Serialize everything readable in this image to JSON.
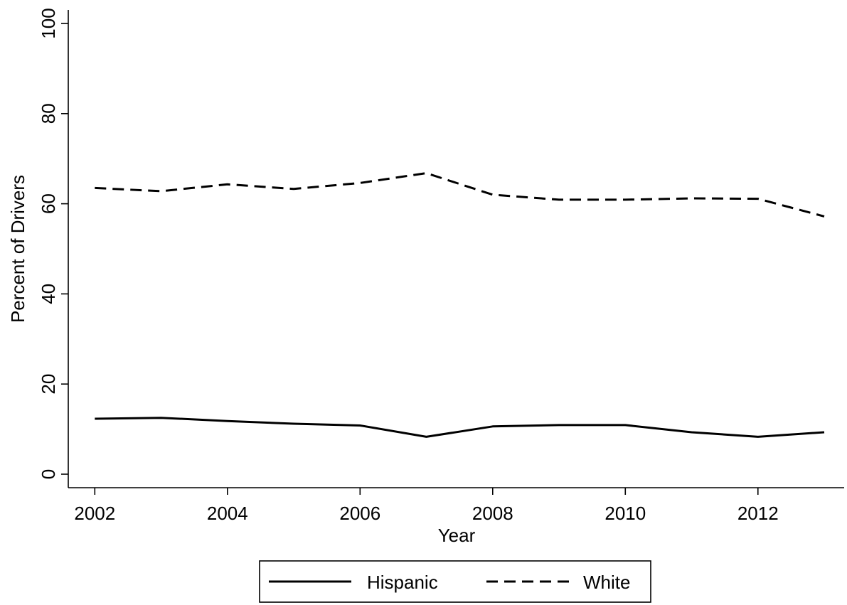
{
  "chart_data": {
    "type": "line",
    "title": "",
    "xlabel": "Year",
    "ylabel": "Percent of Drivers",
    "x": [
      2002,
      2003,
      2004,
      2005,
      2006,
      2007,
      2008,
      2009,
      2010,
      2011,
      2012,
      2013
    ],
    "xlim": [
      2001.6,
      2013.3
    ],
    "ylim": [
      -3,
      103
    ],
    "xticks": [
      2002,
      2004,
      2006,
      2008,
      2010,
      2012
    ],
    "yticks": [
      0,
      20,
      40,
      60,
      80,
      100
    ],
    "grid": false,
    "legend_position": "bottom-center",
    "series": [
      {
        "name": "Hispanic",
        "style": "solid",
        "color": "#000000",
        "values": [
          12.3,
          12.5,
          11.8,
          11.2,
          10.8,
          8.3,
          10.6,
          10.9,
          10.9,
          9.3,
          8.3,
          9.3
        ]
      },
      {
        "name": "White",
        "style": "dashed",
        "color": "#000000",
        "values": [
          63.5,
          62.8,
          64.3,
          63.3,
          64.6,
          66.8,
          62.0,
          60.9,
          60.9,
          61.2,
          61.1,
          57.2
        ]
      }
    ]
  }
}
